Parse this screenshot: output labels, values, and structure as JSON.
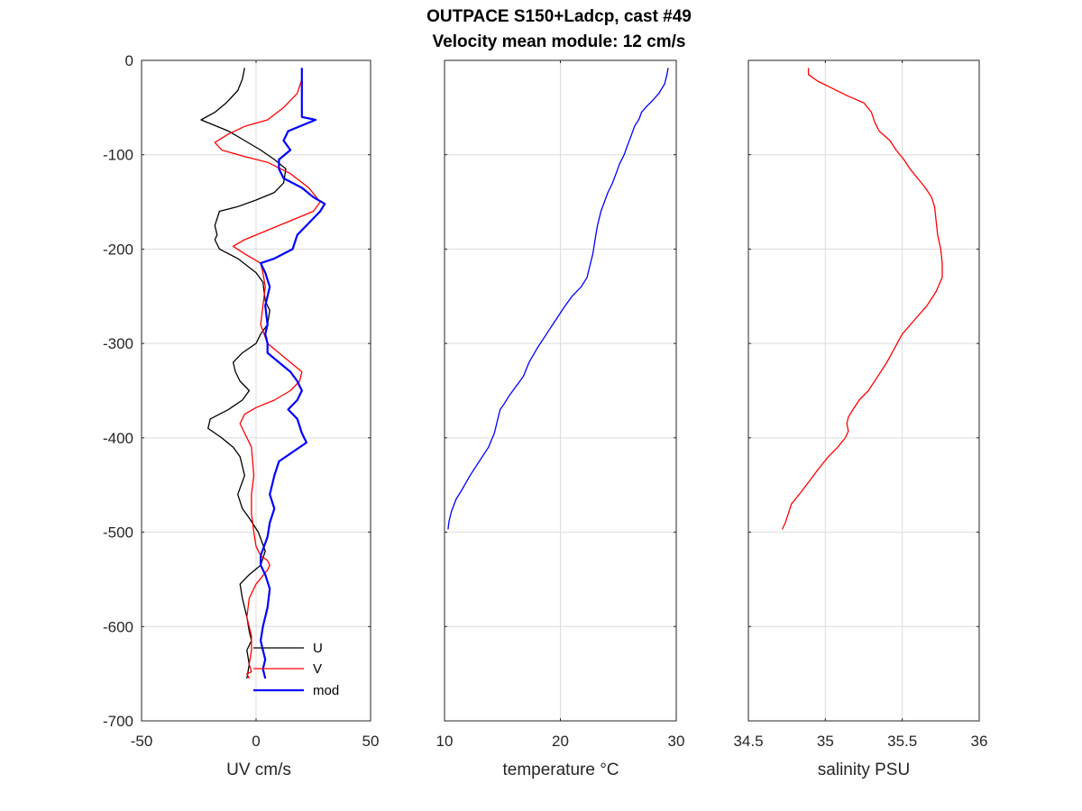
{
  "title": "OUTPACE S150+Ladcp, cast #49",
  "subtitle": "Velocity mean module:  12 cm/s",
  "chart_data": [
    {
      "type": "line",
      "xlabel": "UV cm/s",
      "ylabel": "",
      "xlim": [
        -50,
        50
      ],
      "ylim": [
        -700,
        0
      ],
      "xticks": [
        "-50",
        "0",
        "50"
      ],
      "yticks": [
        "0",
        "-100",
        "-200",
        "-300",
        "-400",
        "-500",
        "-600",
        "-700"
      ],
      "grid": true,
      "legend": {
        "placement": "bottom-right",
        "entries": [
          "U",
          "V",
          "mod"
        ]
      },
      "series": [
        {
          "name": "U",
          "color": "#000000",
          "x": [
            -5,
            -6,
            -8,
            -13,
            -18,
            -24,
            -12,
            -5,
            2,
            8,
            13,
            12,
            8,
            0,
            -8,
            -16,
            -18,
            -17,
            -18,
            -16,
            -8,
            0,
            3,
            4,
            6,
            5,
            2,
            0,
            -6,
            -10,
            -9,
            -7,
            -3,
            -6,
            -9,
            -12,
            -20,
            -21,
            -15,
            -10,
            -7,
            -5,
            -8,
            -6,
            -3,
            1,
            4,
            2,
            -3,
            -7,
            -6,
            -4,
            -3,
            -2,
            -4,
            -3,
            -4
          ],
          "y": [
            -8,
            -20,
            -32,
            -45,
            -55,
            -63,
            -75,
            -85,
            -95,
            -105,
            -115,
            -130,
            -140,
            -148,
            -155,
            -160,
            -175,
            -185,
            -190,
            -200,
            -210,
            -225,
            -235,
            -255,
            -265,
            -280,
            -290,
            -300,
            -310,
            -320,
            -330,
            -340,
            -350,
            -360,
            -365,
            -370,
            -380,
            -390,
            -400,
            -410,
            -420,
            -440,
            -460,
            -475,
            -485,
            -500,
            -520,
            -535,
            -545,
            -555,
            -570,
            -590,
            -605,
            -615,
            -625,
            -640,
            -655
          ]
        },
        {
          "name": "V",
          "color": "#ff0000",
          "x": [
            20,
            20,
            18,
            12,
            5,
            -5,
            -12,
            -18,
            -15,
            -5,
            5,
            15,
            23,
            28,
            25,
            15,
            5,
            -5,
            -10,
            -5,
            2,
            3,
            4,
            3,
            2,
            5,
            10,
            15,
            20,
            19,
            15,
            8,
            0,
            -5,
            -7,
            -5,
            -2,
            -1,
            -2,
            -2,
            -1,
            0,
            2,
            5,
            6,
            5,
            0,
            -3,
            -4,
            -2,
            -2,
            -3,
            -2,
            -4,
            -3
          ],
          "y": [
            -8,
            -20,
            -35,
            -50,
            -63,
            -70,
            -78,
            -87,
            -95,
            -102,
            -108,
            -120,
            -135,
            -150,
            -160,
            -170,
            -180,
            -190,
            -197,
            -205,
            -215,
            -225,
            -240,
            -260,
            -280,
            -300,
            -310,
            -320,
            -330,
            -340,
            -350,
            -360,
            -368,
            -375,
            -385,
            -395,
            -410,
            -440,
            -460,
            -480,
            -500,
            -515,
            -525,
            -530,
            -535,
            -540,
            -555,
            -570,
            -590,
            -610,
            -625,
            -640,
            -648,
            -650,
            -655
          ]
        },
        {
          "name": "mod",
          "color": "#0000ff",
          "x": [
            20,
            20,
            20,
            20,
            20,
            20,
            26,
            14,
            12,
            15,
            10,
            10,
            12,
            20,
            25,
            30,
            28,
            24,
            18,
            16,
            8,
            2,
            4,
            6,
            4,
            5,
            4,
            5,
            5,
            10,
            15,
            18,
            20,
            18,
            14,
            18,
            20,
            22,
            16,
            10,
            8,
            6,
            8,
            6,
            5,
            2,
            2,
            4,
            6,
            5,
            3,
            2,
            3,
            4,
            3,
            4
          ],
          "y": [
            -8,
            -20,
            -35,
            -45,
            -55,
            -60,
            -63,
            -75,
            -85,
            -95,
            -105,
            -115,
            -125,
            -135,
            -145,
            -152,
            -160,
            -170,
            -185,
            -200,
            -210,
            -215,
            -225,
            -240,
            -260,
            -280,
            -290,
            -300,
            -310,
            -320,
            -330,
            -340,
            -350,
            -360,
            -370,
            -380,
            -395,
            -405,
            -415,
            -425,
            -440,
            -460,
            -475,
            -490,
            -505,
            -525,
            -535,
            -545,
            -560,
            -580,
            -600,
            -615,
            -625,
            -635,
            -645,
            -655
          ]
        }
      ]
    },
    {
      "type": "line",
      "xlabel": "temperature °C",
      "ylabel": "",
      "xlim": [
        10,
        30
      ],
      "ylim": [
        -700,
        0
      ],
      "xticks": [
        "10",
        "20",
        "30"
      ],
      "grid": true,
      "series": [
        {
          "name": "",
          "color": "#0000ff",
          "x": [
            29.3,
            29.2,
            29.0,
            28.5,
            28.0,
            27.5,
            27.0,
            26.8,
            26.4,
            26.1,
            25.8,
            25.5,
            25.1,
            24.8,
            24.5,
            24.1,
            23.8,
            23.5,
            23.2,
            23.0,
            22.8,
            22.6,
            22.3,
            21.8,
            21.0,
            20.3,
            19.6,
            18.8,
            18.0,
            17.3,
            16.8,
            16.2,
            15.6,
            15.1,
            14.8,
            14.6,
            14.3,
            13.8,
            13.0,
            12.2,
            11.5,
            11.0,
            10.6,
            10.4,
            10.3
          ],
          "y": [
            -8,
            -15,
            -25,
            -35,
            -42,
            -48,
            -55,
            -62,
            -70,
            -80,
            -90,
            -100,
            -110,
            -120,
            -130,
            -140,
            -150,
            -160,
            -175,
            -190,
            -205,
            -215,
            -230,
            -240,
            -250,
            -262,
            -275,
            -290,
            -305,
            -320,
            -335,
            -345,
            -355,
            -365,
            -370,
            -380,
            -395,
            -410,
            -425,
            -440,
            -455,
            -465,
            -478,
            -488,
            -497
          ]
        }
      ]
    },
    {
      "type": "line",
      "xlabel": "salinity PSU",
      "ylabel": "",
      "xlim": [
        34.5,
        36
      ],
      "ylim": [
        -700,
        0
      ],
      "xticks": [
        "34.5",
        "35",
        "35.5",
        "36"
      ],
      "grid": true,
      "series": [
        {
          "name": "",
          "color": "#ff0000",
          "x": [
            34.89,
            34.89,
            34.95,
            35.05,
            35.15,
            35.25,
            35.3,
            35.32,
            35.35,
            35.42,
            35.46,
            35.51,
            35.55,
            35.6,
            35.65,
            35.69,
            35.71,
            35.72,
            35.73,
            35.75,
            35.76,
            35.76,
            35.72,
            35.66,
            35.58,
            35.5,
            35.45,
            35.4,
            35.34,
            35.28,
            35.22,
            35.18,
            35.15,
            35.14,
            35.15,
            35.13,
            35.08,
            35.02,
            34.96,
            34.9,
            34.84,
            34.78,
            34.76,
            34.74,
            34.72
          ],
          "y": [
            -8,
            -15,
            -22,
            -30,
            -38,
            -45,
            -55,
            -65,
            -75,
            -85,
            -95,
            -105,
            -115,
            -125,
            -135,
            -145,
            -155,
            -170,
            -185,
            -200,
            -215,
            -230,
            -245,
            -260,
            -275,
            -290,
            -305,
            -320,
            -335,
            -350,
            -360,
            -370,
            -378,
            -385,
            -393,
            -400,
            -410,
            -420,
            -432,
            -445,
            -458,
            -470,
            -480,
            -490,
            -497
          ]
        }
      ]
    }
  ]
}
